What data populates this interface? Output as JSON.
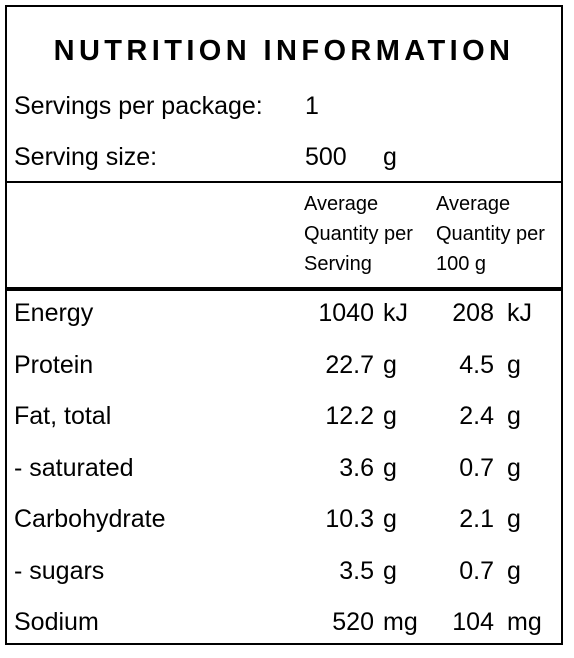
{
  "title": "NUTRITION INFORMATION",
  "servings": {
    "label": "Servings per package:",
    "value": "1"
  },
  "serving_size": {
    "label": "Serving size:",
    "value": "500",
    "unit": "g"
  },
  "headers": {
    "per_serving": [
      "Average",
      "Quantity per",
      "Serving"
    ],
    "per_100g": [
      "Average",
      "Quantity per",
      "100 g"
    ]
  },
  "rows": [
    {
      "label": "Energy",
      "serving": "1040",
      "serving_unit": "kJ",
      "per100": "208",
      "per100_unit": "kJ"
    },
    {
      "label": "Protein",
      "serving": "22.7",
      "serving_unit": "g",
      "per100": "4.5",
      "per100_unit": "g"
    },
    {
      "label": "Fat, total",
      "serving": "12.2",
      "serving_unit": "g",
      "per100": "2.4",
      "per100_unit": "g"
    },
    {
      "label": "- saturated",
      "serving": "3.6",
      "serving_unit": "g",
      "per100": "0.7",
      "per100_unit": "g"
    },
    {
      "label": "Carbohydrate",
      "serving": "10.3",
      "serving_unit": "g",
      "per100": "2.1",
      "per100_unit": "g"
    },
    {
      "label": "- sugars",
      "serving": "3.5",
      "serving_unit": "g",
      "per100": "0.7",
      "per100_unit": "g"
    },
    {
      "label": "Sodium",
      "serving": "520",
      "serving_unit": "mg",
      "per100": "104",
      "per100_unit": "mg"
    }
  ]
}
